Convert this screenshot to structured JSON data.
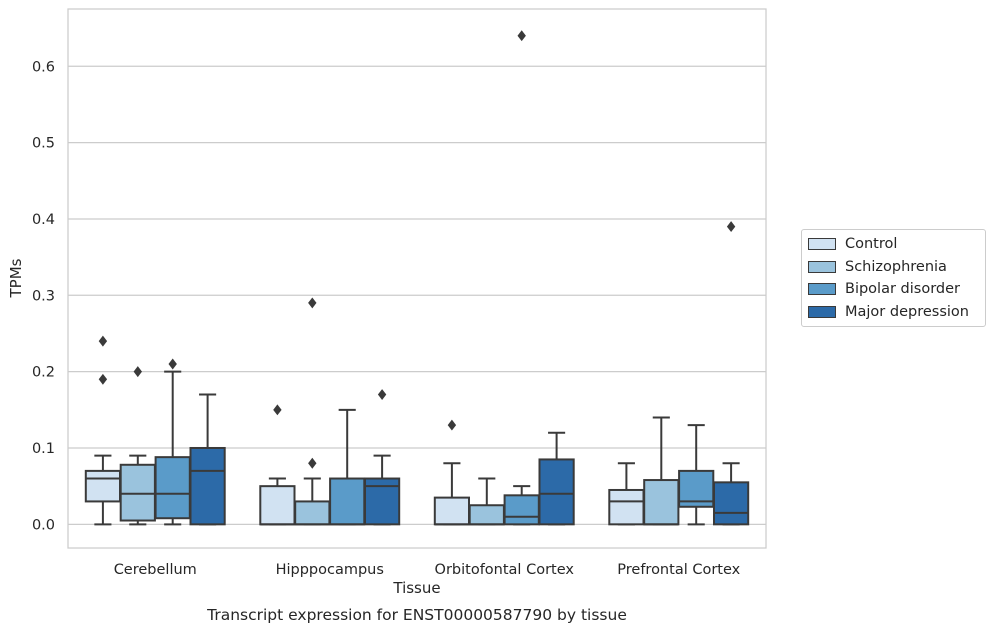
{
  "chart_data": {
    "type": "box",
    "xlabel": "Tissue",
    "ylabel": "TPMs",
    "caption": "Transcript expression for ENST00000587790 by tissue",
    "ylim": [
      -0.031,
      0.675
    ],
    "yticks": [
      "0.0",
      "0.1",
      "0.2",
      "0.3",
      "0.4",
      "0.5",
      "0.6"
    ],
    "grid": "horizontal",
    "legend_position": "right",
    "categories": [
      "Cerebellum",
      "Hipppocampus",
      "Orbitofontal Cortex",
      "Prefrontal Cortex"
    ],
    "series": [
      {
        "name": "Control",
        "color": "#d1e2f2",
        "boxes": [
          {
            "q1": 0.03,
            "median": 0.06,
            "q3": 0.07,
            "whisker_low": 0.0,
            "whisker_high": 0.09,
            "outliers": [
              0.24,
              0.19
            ]
          },
          {
            "q1": 0.0,
            "median": 0.0,
            "q3": 0.05,
            "whisker_low": 0.0,
            "whisker_high": 0.06,
            "outliers": [
              0.15
            ]
          },
          {
            "q1": 0.0,
            "median": 0.0,
            "q3": 0.035,
            "whisker_low": 0.0,
            "whisker_high": 0.08,
            "outliers": [
              0.13
            ]
          },
          {
            "q1": 0.0,
            "median": 0.03,
            "q3": 0.045,
            "whisker_low": 0.0,
            "whisker_high": 0.08,
            "outliers": []
          }
        ]
      },
      {
        "name": "Schizophrenia",
        "color": "#9ac3dd",
        "boxes": [
          {
            "q1": 0.005,
            "median": 0.04,
            "q3": 0.078,
            "whisker_low": 0.0,
            "whisker_high": 0.09,
            "outliers": [
              0.2
            ]
          },
          {
            "q1": 0.0,
            "median": 0.0,
            "q3": 0.03,
            "whisker_low": 0.0,
            "whisker_high": 0.06,
            "outliers": [
              0.29,
              0.08
            ]
          },
          {
            "q1": 0.0,
            "median": 0.0,
            "q3": 0.025,
            "whisker_low": 0.0,
            "whisker_high": 0.06,
            "outliers": []
          },
          {
            "q1": 0.0,
            "median": 0.0,
            "q3": 0.058,
            "whisker_low": 0.0,
            "whisker_high": 0.14,
            "outliers": []
          }
        ]
      },
      {
        "name": "Bipolar disorder",
        "color": "#5a9bc9",
        "boxes": [
          {
            "q1": 0.008,
            "median": 0.04,
            "q3": 0.088,
            "whisker_low": 0.0,
            "whisker_high": 0.2,
            "outliers": [
              0.21
            ]
          },
          {
            "q1": 0.0,
            "median": 0.0,
            "q3": 0.06,
            "whisker_low": 0.0,
            "whisker_high": 0.15,
            "outliers": []
          },
          {
            "q1": 0.0,
            "median": 0.01,
            "q3": 0.038,
            "whisker_low": 0.0,
            "whisker_high": 0.05,
            "outliers": [
              0.64
            ]
          },
          {
            "q1": 0.023,
            "median": 0.03,
            "q3": 0.07,
            "whisker_low": 0.0,
            "whisker_high": 0.13,
            "outliers": []
          }
        ]
      },
      {
        "name": "Major depression",
        "color": "#2c6aa8",
        "boxes": [
          {
            "q1": 0.0,
            "median": 0.07,
            "q3": 0.1,
            "whisker_low": 0.0,
            "whisker_high": 0.17,
            "outliers": []
          },
          {
            "q1": 0.0,
            "median": 0.05,
            "q3": 0.06,
            "whisker_low": 0.0,
            "whisker_high": 0.09,
            "outliers": [
              0.17
            ]
          },
          {
            "q1": 0.0,
            "median": 0.04,
            "q3": 0.085,
            "whisker_low": 0.0,
            "whisker_high": 0.12,
            "outliers": []
          },
          {
            "q1": 0.0,
            "median": 0.015,
            "q3": 0.055,
            "whisker_low": 0.0,
            "whisker_high": 0.08,
            "outliers": [
              0.39
            ]
          }
        ]
      }
    ]
  }
}
